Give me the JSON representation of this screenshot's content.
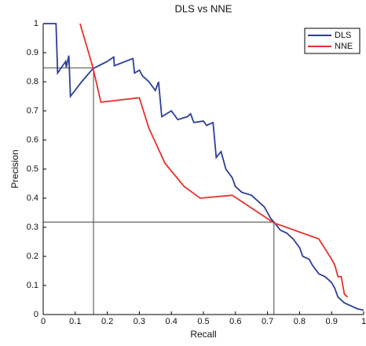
{
  "chart_data": {
    "type": "line",
    "title": "DLS vs NNE",
    "xlabel": "Recall",
    "ylabel": "Precision",
    "xlim": [
      0,
      1
    ],
    "ylim": [
      0,
      1
    ],
    "xticks": [
      0,
      0.1,
      0.2,
      0.3,
      0.4,
      0.5,
      0.6,
      0.7,
      0.8,
      0.9,
      1
    ],
    "yticks": [
      0,
      0.1,
      0.2,
      0.3,
      0.4,
      0.5,
      0.6,
      0.7,
      0.8,
      0.9,
      1
    ],
    "legend": "upper right",
    "reference_points": [
      {
        "x": 0.157,
        "y": 0.848
      },
      {
        "x": 0.72,
        "y": 0.318
      }
    ],
    "series": [
      {
        "name": "DLS",
        "color": "#2c3e9a",
        "x": [
          0,
          0.04,
          0.045,
          0.07,
          0.072,
          0.08,
          0.085,
          0.12,
          0.155,
          0.2,
          0.22,
          0.222,
          0.28,
          0.285,
          0.3,
          0.31,
          0.33,
          0.35,
          0.36,
          0.37,
          0.4,
          0.42,
          0.45,
          0.46,
          0.47,
          0.5,
          0.51,
          0.53,
          0.54,
          0.555,
          0.57,
          0.59,
          0.6,
          0.62,
          0.65,
          0.67,
          0.69,
          0.7,
          0.71,
          0.72,
          0.74,
          0.76,
          0.78,
          0.8,
          0.81,
          0.83,
          0.84,
          0.86,
          0.88,
          0.9,
          0.91,
          0.92,
          0.94,
          0.96,
          0.98,
          1
        ],
        "values": [
          1,
          1,
          0.83,
          0.87,
          0.85,
          0.89,
          0.75,
          0.8,
          0.845,
          0.87,
          0.885,
          0.855,
          0.88,
          0.83,
          0.84,
          0.82,
          0.8,
          0.77,
          0.8,
          0.68,
          0.7,
          0.67,
          0.68,
          0.69,
          0.66,
          0.665,
          0.65,
          0.66,
          0.54,
          0.56,
          0.5,
          0.47,
          0.44,
          0.42,
          0.41,
          0.39,
          0.37,
          0.35,
          0.33,
          0.318,
          0.29,
          0.28,
          0.26,
          0.23,
          0.2,
          0.19,
          0.17,
          0.14,
          0.13,
          0.11,
          0.09,
          0.06,
          0.04,
          0.03,
          0.02,
          0.015
        ]
      },
      {
        "name": "NNE",
        "color": "#e8302a",
        "x": [
          0.115,
          0.155,
          0.18,
          0.3,
          0.33,
          0.38,
          0.44,
          0.49,
          0.59,
          0.72,
          0.86,
          0.9,
          0.91,
          0.92,
          0.93,
          0.94,
          0.95
        ],
        "values": [
          1,
          0.85,
          0.73,
          0.745,
          0.64,
          0.52,
          0.44,
          0.4,
          0.41,
          0.315,
          0.26,
          0.19,
          0.17,
          0.13,
          0.13,
          0.07,
          0.06
        ]
      }
    ]
  }
}
